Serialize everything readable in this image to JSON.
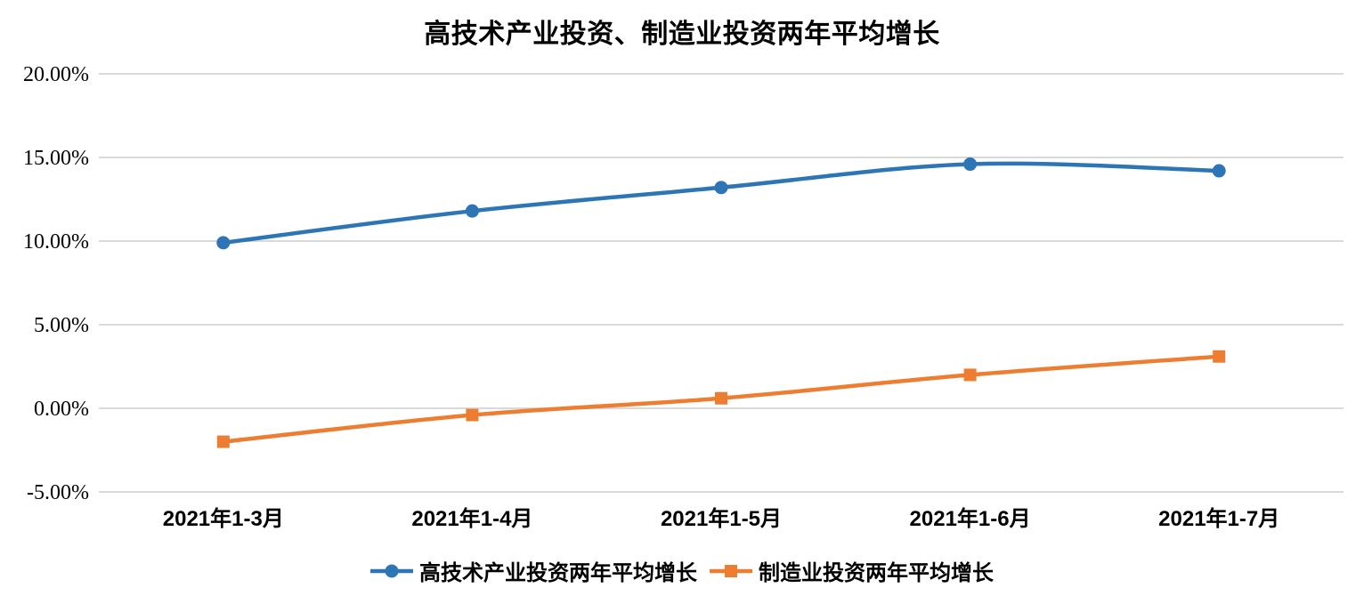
{
  "chart_data": {
    "type": "line",
    "title": "高技术产业投资、制造业投资两年平均增长",
    "categories": [
      "2021年1-3月",
      "2021年1-4月",
      "2021年1-5月",
      "2021年1-6月",
      "2021年1-7月"
    ],
    "series": [
      {
        "name": "高技术产业投资两年平均增长",
        "values": [
          9.9,
          11.8,
          13.2,
          14.6,
          14.2
        ],
        "color": "#2E75B6",
        "marker": "circle"
      },
      {
        "name": "制造业投资两年平均增长",
        "values": [
          -2.0,
          -0.4,
          0.6,
          2.0,
          3.1
        ],
        "color": "#ED7D31",
        "marker": "square"
      }
    ],
    "y_axis": {
      "min": -5,
      "max": 20,
      "step": 5,
      "tick_labels": [
        "20.00%",
        "15.00%",
        "10.00%",
        "5.00%",
        "0.00%",
        "-5.00%"
      ],
      "format": "percent"
    },
    "x_axis_label": "",
    "y_axis_label": "",
    "grid": true,
    "gridline_color": "#D9D9D9",
    "legend_position": "bottom",
    "background_color": "#FFFFFF",
    "smoothed_lines": true
  }
}
